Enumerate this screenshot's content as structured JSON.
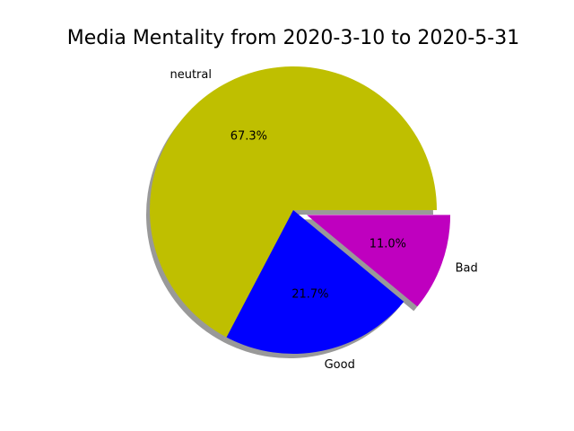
{
  "chart_data": {
    "type": "pie",
    "title": "Media Mentality from 2020-3-10 to 2020-5-31",
    "slices": [
      {
        "label": "neutral",
        "value": 67.3,
        "pct_label": "67.3%",
        "color": "#bfbf00",
        "explode": false
      },
      {
        "label": "Good",
        "value": 21.7,
        "pct_label": "21.7%",
        "color": "#0000ff",
        "explode": false
      },
      {
        "label": "Bad",
        "value": 11.0,
        "pct_label": "11.0%",
        "color": "#bf00bf",
        "explode": true
      }
    ],
    "shadow": true,
    "legend": "none"
  }
}
